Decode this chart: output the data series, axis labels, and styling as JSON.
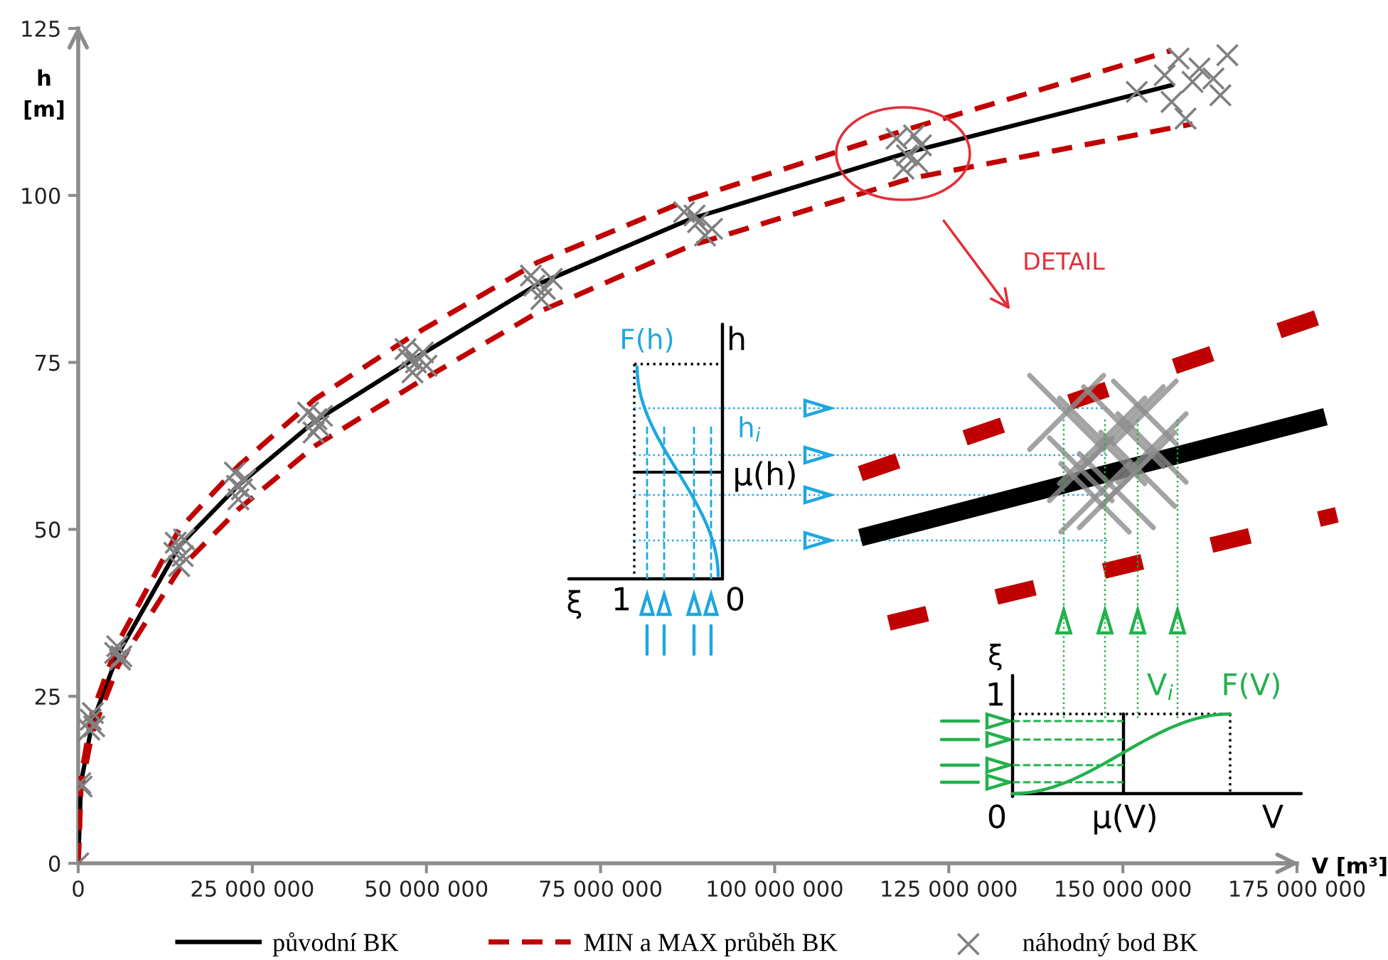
{
  "chart_data": {
    "type": "line",
    "xlabel": "V [m³]",
    "ylabel": "h\n[m]",
    "xlim": [
      0,
      175000000
    ],
    "ylim": [
      0,
      125
    ],
    "xticks": [
      0,
      {
        "value": 25000000,
        "label": "25 000 000"
      },
      {
        "value": 50000000,
        "label": "50 000 000"
      },
      {
        "value": 75000000,
        "label": "75 000 000"
      },
      {
        "value": 100000000,
        "label": "100 000 000"
      },
      {
        "value": 125000000,
        "label": "125 000 000"
      },
      {
        "value": 150000000,
        "label": "150 000 000"
      },
      {
        "value": 175000000,
        "label": "175 000 000"
      }
    ],
    "yticks": [
      0,
      25,
      50,
      75,
      100,
      125
    ],
    "grid": false,
    "legend": "bottom",
    "series": [
      {
        "name": "původní BK",
        "color": "#000000",
        "line_style": "solid",
        "x": [
          0,
          400000,
          2000000,
          5700000,
          14500000,
          23000000,
          34000000,
          48000000,
          66000000,
          88000000,
          119400000,
          157000000
        ],
        "values": [
          0,
          12,
          21,
          31.3,
          47.5,
          56.6,
          66.2,
          75.4,
          86.7,
          96.5,
          106.5,
          116.5
        ]
      },
      {
        "name": "MIN a MAX průběh BK",
        "color": "#c00000",
        "line_style": "dashed",
        "x": [
          0,
          400000,
          2000000,
          5700000,
          14500000,
          23000000,
          34000000,
          48000000,
          66000000,
          88000000,
          119400000,
          157000000
        ],
        "values": [
          0,
          13,
          22.5,
          33,
          50,
          59.5,
          69.5,
          79,
          90,
          99.5,
          110,
          121.7
        ]
      },
      {
        "color": "#c00000",
        "line_style": "dashed",
        "x": [
          0,
          400000,
          2000000,
          5700000,
          14500000,
          23000000,
          34000000,
          48000000,
          66000000,
          88000000,
          119400000,
          160000000
        ],
        "values": [
          0,
          11,
          19.5,
          29.5,
          44,
          53,
          62.5,
          71.5,
          82.5,
          92.5,
          102.5,
          110.7
        ]
      },
      {
        "name": "náhodný bod BK",
        "type": "scatter",
        "color": "#808080",
        "marker": "cross",
        "x": [
          0,
          300000,
          500000,
          1800000,
          2300000,
          2100000,
          1600000,
          5300000,
          6000000,
          5600000,
          6200000,
          14000000,
          15000000,
          14500000,
          13800000,
          15200000,
          22500000,
          23500000,
          23000000,
          24000000,
          22800000,
          33000000,
          34500000,
          35000000,
          33800000,
          34200000,
          47000000,
          48500000,
          49500000,
          48000000,
          50000000,
          47500000,
          65000000,
          67000000,
          66500000,
          68000000,
          65500000,
          87000000,
          89000000,
          90000000,
          88500000,
          91000000,
          117500000,
          119000000,
          120500000,
          121000000,
          118500000,
          120000000,
          152000000,
          156000000,
          158000000,
          160000000,
          161000000,
          163000000,
          165000000,
          164000000,
          159000000,
          157000000
        ],
        "values": [
          0,
          12,
          11.5,
          21.5,
          20.5,
          22.5,
          20,
          31.5,
          30.5,
          32.5,
          31,
          48,
          46,
          44.5,
          46.5,
          48.5,
          58.5,
          56,
          54.5,
          57.5,
          56.5,
          67.5,
          65.5,
          67,
          64.5,
          66.5,
          77,
          75,
          76.5,
          73.5,
          74.5,
          75.5,
          88,
          86,
          84.5,
          87.5,
          86.5,
          97.5,
          96,
          94,
          97,
          95,
          108.5,
          106,
          105,
          107.5,
          104,
          109,
          115.5,
          118,
          120.5,
          117,
          119,
          117.5,
          121,
          115,
          111.5,
          114
        ]
      }
    ],
    "annotations": [
      "DETAIL",
      "F(h)",
      "h",
      "h$_{i}$",
      "μ(h)",
      "ξ",
      "1",
      "0",
      "ξ",
      "1",
      "0",
      "μ(V)",
      "V",
      "V$_{i}$",
      "F(V)"
    ]
  }
}
